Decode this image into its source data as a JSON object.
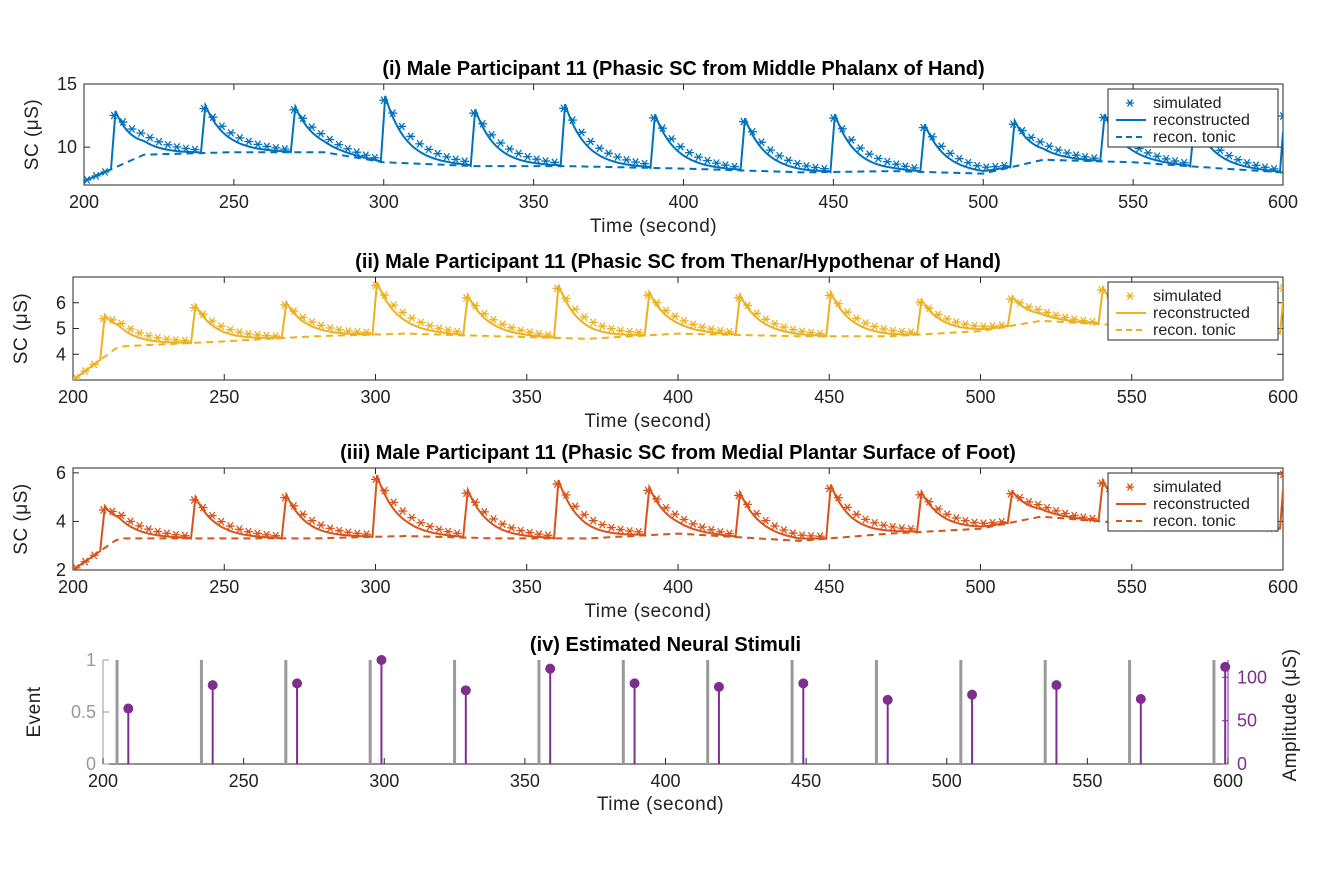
{
  "chart_data": [
    {
      "type": "line",
      "title": "(i) Male Participant 11 (Phasic SC from Middle Phalanx of Hand)",
      "xlabel": "Time (second)",
      "ylabel": "SC (μS)",
      "xlim": [
        200,
        600
      ],
      "ylim": [
        7,
        15
      ],
      "xticks": [
        200,
        250,
        300,
        350,
        400,
        450,
        500,
        550,
        600
      ],
      "yticks": [
        10,
        15
      ],
      "color": "#0072BD",
      "grid": false,
      "legend_position": "top-right",
      "legend": [
        "simulated",
        "reconstructed",
        "recon. tonic"
      ],
      "pulses": [
        {
          "t": 209,
          "peak": 12.7
        },
        {
          "t": 239,
          "peak": 13.3
        },
        {
          "t": 269,
          "peak": 13.2
        },
        {
          "t": 299,
          "peak": 14.1
        },
        {
          "t": 329,
          "peak": 13.0
        },
        {
          "t": 359,
          "peak": 13.4
        },
        {
          "t": 389,
          "peak": 12.6
        },
        {
          "t": 419,
          "peak": 12.3
        },
        {
          "t": 449,
          "peak": 12.6
        },
        {
          "t": 479,
          "peak": 11.8
        },
        {
          "t": 509,
          "peak": 12.0
        },
        {
          "t": 539,
          "peak": 12.6
        },
        {
          "t": 569,
          "peak": 12.0
        },
        {
          "t": 599,
          "peak": 12.8
        }
      ],
      "tonic": {
        "x": [
          200,
          220,
          250,
          280,
          300,
          330,
          360,
          400,
          440,
          470,
          500,
          520,
          550,
          580,
          600
        ],
        "y": [
          7.3,
          9.4,
          9.6,
          9.6,
          8.8,
          8.5,
          8.5,
          8.3,
          8.0,
          8.1,
          7.9,
          9.0,
          8.8,
          8.3,
          8.0
        ]
      }
    },
    {
      "type": "line",
      "title": "(ii) Male Participant 11 (Phasic SC from Thenar/Hypothenar of Hand)",
      "xlabel": "Time (second)",
      "ylabel": "SC (μS)",
      "xlim": [
        200,
        600
      ],
      "ylim": [
        3,
        7
      ],
      "xticks": [
        200,
        250,
        300,
        350,
        400,
        450,
        500,
        550,
        600
      ],
      "yticks": [
        4,
        5,
        6
      ],
      "color": "#EDB120",
      "grid": false,
      "legend_position": "top-right",
      "legend": [
        "simulated",
        "reconstructed",
        "recon. tonic"
      ],
      "pulses": [
        {
          "t": 209,
          "peak": 5.4
        },
        {
          "t": 239,
          "peak": 5.9
        },
        {
          "t": 269,
          "peak": 6.0
        },
        {
          "t": 299,
          "peak": 6.8
        },
        {
          "t": 329,
          "peak": 6.3
        },
        {
          "t": 359,
          "peak": 6.7
        },
        {
          "t": 389,
          "peak": 6.4
        },
        {
          "t": 419,
          "peak": 6.3
        },
        {
          "t": 449,
          "peak": 6.4
        },
        {
          "t": 479,
          "peak": 6.1
        },
        {
          "t": 509,
          "peak": 6.2
        },
        {
          "t": 539,
          "peak": 6.6
        },
        {
          "t": 599,
          "peak": 6.7
        }
      ],
      "tonic": {
        "x": [
          200,
          215,
          250,
          280,
          310,
          340,
          370,
          400,
          440,
          470,
          500,
          520,
          550,
          600
        ],
        "y": [
          3.0,
          4.3,
          4.5,
          4.7,
          4.8,
          4.7,
          4.6,
          4.8,
          4.7,
          4.7,
          4.9,
          5.3,
          5.1,
          4.8
        ]
      }
    },
    {
      "type": "line",
      "title": "(iii) Male Participant 11 (Phasic SC from Medial Plantar Surface of Foot)",
      "xlabel": "Time (second)",
      "ylabel": "SC (μS)",
      "xlim": [
        200,
        600
      ],
      "ylim": [
        2,
        6.2
      ],
      "xticks": [
        200,
        250,
        300,
        350,
        400,
        450,
        500,
        550,
        600
      ],
      "yticks": [
        2,
        4,
        6
      ],
      "color": "#D95319",
      "grid": false,
      "legend_position": "top-right",
      "legend": [
        "simulated",
        "reconstructed",
        "recon. tonic"
      ],
      "pulses": [
        {
          "t": 209,
          "peak": 4.5
        },
        {
          "t": 239,
          "peak": 5.0
        },
        {
          "t": 269,
          "peak": 5.1
        },
        {
          "t": 299,
          "peak": 5.9
        },
        {
          "t": 329,
          "peak": 5.3
        },
        {
          "t": 359,
          "peak": 5.7
        },
        {
          "t": 389,
          "peak": 5.4
        },
        {
          "t": 419,
          "peak": 5.2
        },
        {
          "t": 449,
          "peak": 5.5
        },
        {
          "t": 479,
          "peak": 5.2
        },
        {
          "t": 509,
          "peak": 5.2
        },
        {
          "t": 539,
          "peak": 5.7
        },
        {
          "t": 599,
          "peak": 6.1
        }
      ],
      "tonic": {
        "x": [
          200,
          215,
          250,
          280,
          310,
          340,
          370,
          400,
          440,
          470,
          500,
          520,
          550,
          600
        ],
        "y": [
          2.0,
          3.3,
          3.3,
          3.3,
          3.4,
          3.3,
          3.3,
          3.5,
          3.2,
          3.5,
          3.7,
          4.2,
          3.9,
          3.7
        ]
      }
    },
    {
      "type": "stem",
      "title": "(iv) Estimated Neural Stimuli",
      "xlabel": "Time (second)",
      "ylabel_left": "Event",
      "ylabel_right": "Amplitude (μS)",
      "xlim": [
        200,
        600
      ],
      "ylim_left": [
        0,
        1
      ],
      "ylim_right": [
        0,
        120
      ],
      "xticks": [
        200,
        250,
        300,
        350,
        400,
        450,
        500,
        550,
        600
      ],
      "yticks_left": [
        0,
        0.5,
        1
      ],
      "yticks_right": [
        0,
        50,
        100
      ],
      "event_color": "#999999",
      "amplitude_color": "#7E2F8E",
      "events_x": [
        205,
        235,
        265,
        295,
        325,
        355,
        385,
        415,
        445,
        475,
        505,
        535,
        565,
        595
      ],
      "amplitudes": {
        "x": [
          209,
          239,
          269,
          299,
          329,
          359,
          389,
          419,
          449,
          479,
          509,
          539,
          569,
          599
        ],
        "y": [
          64,
          91,
          93,
          120,
          85,
          110,
          93,
          89,
          93,
          74,
          80,
          91,
          75,
          112
        ]
      }
    }
  ]
}
